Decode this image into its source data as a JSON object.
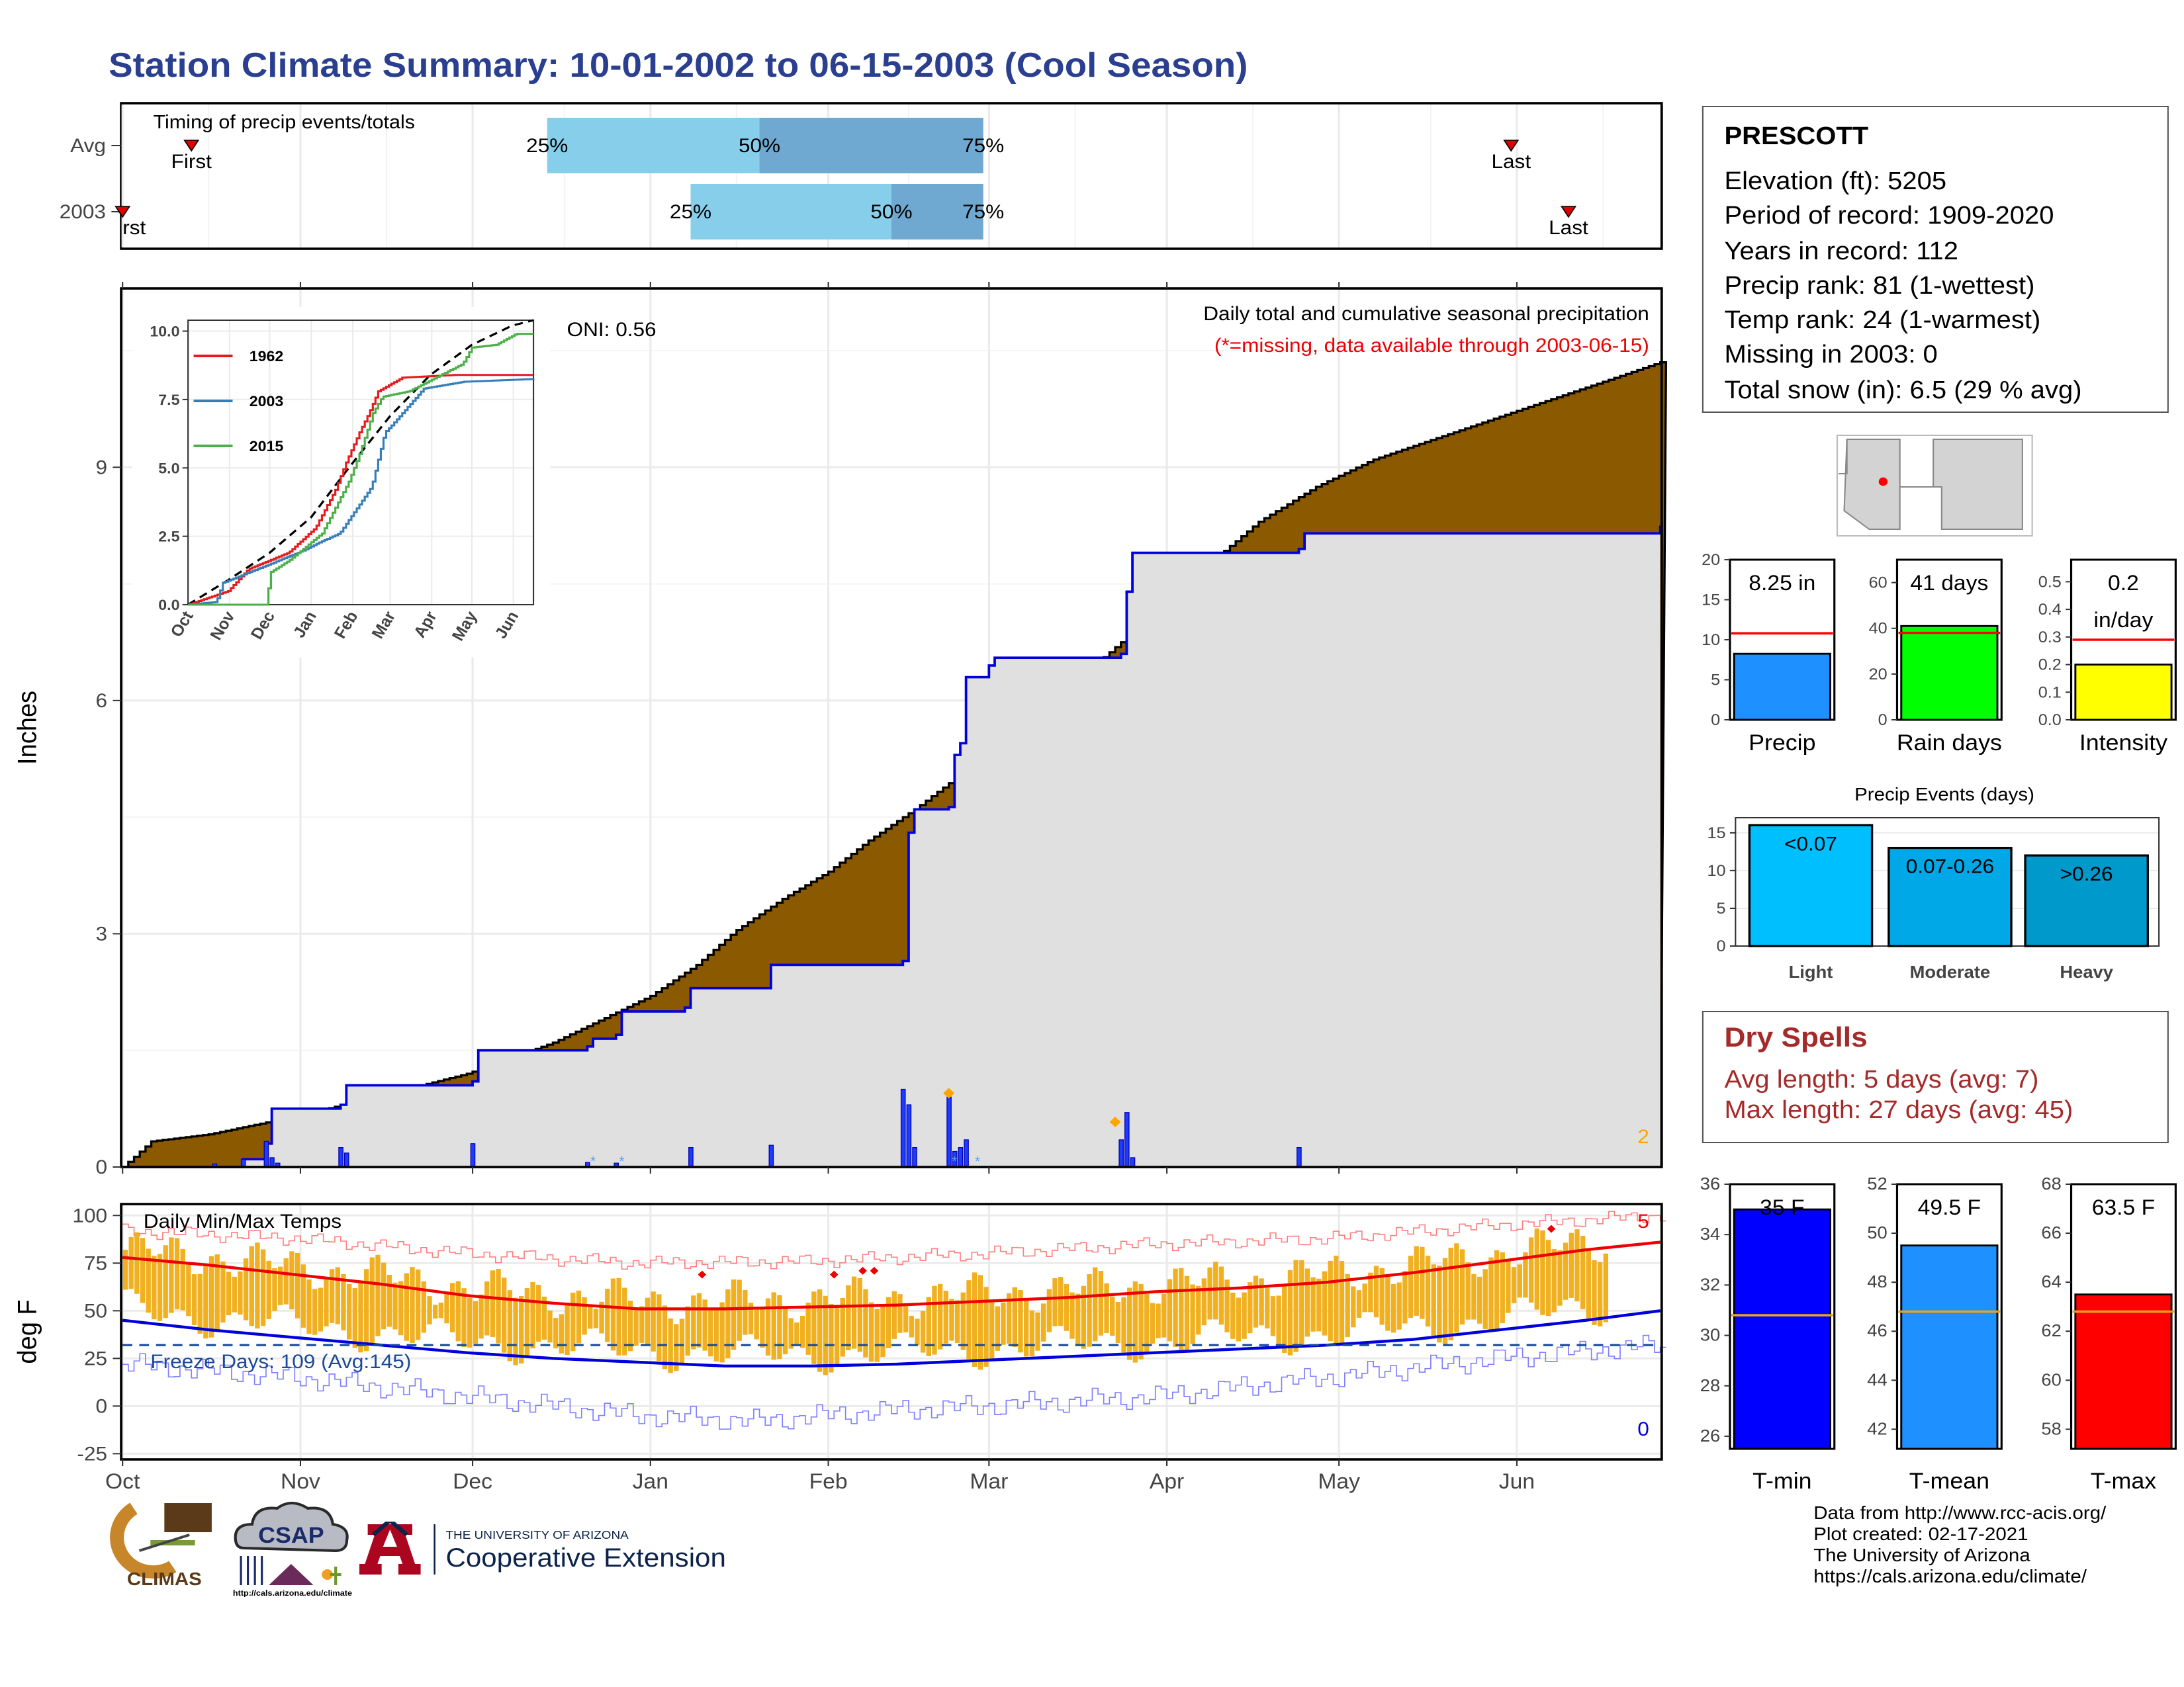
{
  "title": "Station Climate Summary: 10-01-2002 to 06-15-2003 (Cool Season)",
  "months": [
    "Oct",
    "Nov",
    "Dec",
    "Jan",
    "Feb",
    "Mar",
    "Apr",
    "May",
    "Jun"
  ],
  "timing": {
    "title": "Timing of precip events/totals",
    "rows": [
      {
        "label": "Avg",
        "first_day": 12,
        "last_day": 242,
        "p25_day": 74,
        "p50_day": 111,
        "p75_day": 150
      },
      {
        "label": "2003",
        "first_day": 0,
        "last_day": 252,
        "p25_day": 99,
        "p50_day": 134,
        "p75_day": 150
      }
    ],
    "first_label": "First",
    "first_label_clipped": "rst",
    "last_label": "Last",
    "p25": "25%",
    "p50": "50%",
    "p75": "75%"
  },
  "precip": {
    "ylabel": "Inches",
    "legend_title": "Daily total and cumulative seasonal precipitation",
    "legend_note": "(*=missing, data available through 2003-06-15)",
    "oni": "ONI: 0.56",
    "corner_count": "2",
    "yticks": [
      "0",
      "3",
      "6",
      "9"
    ],
    "avg_cumulative": [
      [
        0,
        0
      ],
      [
        5,
        0.33
      ],
      [
        15,
        0.42
      ],
      [
        30,
        0.65
      ],
      [
        45,
        0.92
      ],
      [
        60,
        1.2
      ],
      [
        75,
        1.6
      ],
      [
        92,
        2.2
      ],
      [
        100,
        2.6
      ],
      [
        107,
        3.05
      ],
      [
        115,
        3.45
      ],
      [
        123,
        3.8
      ],
      [
        130,
        4.2
      ],
      [
        138,
        4.6
      ],
      [
        146,
        5.05
      ],
      [
        153,
        5.5
      ],
      [
        160,
        5.9
      ],
      [
        167,
        6.3
      ],
      [
        174,
        6.75
      ],
      [
        182,
        7.3
      ],
      [
        190,
        7.8
      ],
      [
        198,
        8.3
      ],
      [
        208,
        8.75
      ],
      [
        218,
        9.1
      ],
      [
        228,
        9.35
      ],
      [
        238,
        9.6
      ],
      [
        248,
        9.85
      ],
      [
        258,
        10.1
      ],
      [
        268,
        10.35
      ]
    ],
    "cumulative_2003": [
      [
        0,
        0
      ],
      [
        21,
        0.1
      ],
      [
        25,
        0.3
      ],
      [
        26,
        0.75
      ],
      [
        38,
        0.8
      ],
      [
        39,
        1.05
      ],
      [
        61,
        1.1
      ],
      [
        62,
        1.5
      ],
      [
        81,
        1.55
      ],
      [
        82,
        1.65
      ],
      [
        86,
        1.7
      ],
      [
        87,
        2.0
      ],
      [
        98,
        2.05
      ],
      [
        99,
        2.3
      ],
      [
        113,
        2.6
      ],
      [
        136,
        2.65
      ],
      [
        137,
        4.3
      ],
      [
        138,
        4.6
      ],
      [
        144,
        4.63
      ],
      [
        145,
        5.3
      ],
      [
        146,
        5.45
      ],
      [
        147,
        6.3
      ],
      [
        151,
        6.45
      ],
      [
        152,
        6.55
      ],
      [
        174,
        6.6
      ],
      [
        175,
        7.4
      ],
      [
        176,
        7.9
      ],
      [
        205,
        7.95
      ],
      [
        206,
        8.15
      ],
      [
        268,
        8.25
      ]
    ],
    "daily": [
      [
        16,
        0.04
      ],
      [
        21,
        0.1
      ],
      [
        25,
        0.33
      ],
      [
        26,
        0.12
      ],
      [
        27,
        0.05
      ],
      [
        38,
        0.25
      ],
      [
        39,
        0.18
      ],
      [
        61,
        0.3
      ],
      [
        81,
        0.06
      ],
      [
        86,
        0.05
      ],
      [
        99,
        0.25
      ],
      [
        113,
        0.28
      ],
      [
        136,
        1.0
      ],
      [
        137,
        0.8
      ],
      [
        138,
        0.25
      ],
      [
        144,
        0.9
      ],
      [
        145,
        0.2
      ],
      [
        146,
        0.25
      ],
      [
        147,
        0.35
      ],
      [
        174,
        0.35
      ],
      [
        175,
        0.7
      ],
      [
        176,
        0.12
      ],
      [
        205,
        0.25
      ]
    ],
    "snow_days": [
      82,
      87,
      145,
      149
    ],
    "diamonds": [
      [
        144,
        0.95
      ],
      [
        173,
        0.58
      ]
    ]
  },
  "inset": {
    "xticks": [
      "Oct",
      "Nov",
      "Dec",
      "Jan",
      "Feb",
      "Mar",
      "Apr",
      "May",
      "Jun"
    ],
    "yticks": [
      "0.0",
      "2.5",
      "5.0",
      "7.5",
      "10.0"
    ],
    "series": [
      {
        "name": "1962",
        "color": "#e41a1c",
        "points": [
          [
            0,
            0
          ],
          [
            30,
            0.5
          ],
          [
            45,
            1.3
          ],
          [
            75,
            1.9
          ],
          [
            95,
            2.8
          ],
          [
            110,
            4.2
          ],
          [
            118,
            5.2
          ],
          [
            128,
            6.3
          ],
          [
            135,
            7.0
          ],
          [
            142,
            7.8
          ],
          [
            160,
            8.3
          ],
          [
            200,
            8.4
          ],
          [
            258,
            8.4
          ]
        ]
      },
      {
        "name": "2003",
        "color": "#377eb8",
        "points": [
          [
            0,
            0
          ],
          [
            21,
            0.1
          ],
          [
            26,
            0.8
          ],
          [
            39,
            1.05
          ],
          [
            62,
            1.5
          ],
          [
            87,
            2.0
          ],
          [
            99,
            2.3
          ],
          [
            113,
            2.6
          ],
          [
            137,
            4.3
          ],
          [
            147,
            6.3
          ],
          [
            152,
            6.55
          ],
          [
            176,
            7.9
          ],
          [
            206,
            8.15
          ],
          [
            258,
            8.25
          ]
        ]
      },
      {
        "name": "2015",
        "color": "#4daf4a",
        "points": [
          [
            0,
            0
          ],
          [
            58,
            0
          ],
          [
            62,
            1.2
          ],
          [
            75,
            1.6
          ],
          [
            100,
            2.6
          ],
          [
            120,
            4.5
          ],
          [
            128,
            5.5
          ],
          [
            138,
            7.0
          ],
          [
            145,
            7.6
          ],
          [
            165,
            7.8
          ],
          [
            205,
            8.8
          ],
          [
            212,
            9.4
          ],
          [
            230,
            9.5
          ],
          [
            245,
            9.9
          ],
          [
            258,
            9.9
          ]
        ]
      }
    ],
    "avg_points": [
      [
        0,
        0
      ],
      [
        30,
        0.9
      ],
      [
        61,
        1.9
      ],
      [
        92,
        3.2
      ],
      [
        120,
        5.0
      ],
      [
        151,
        6.9
      ],
      [
        181,
        8.4
      ],
      [
        212,
        9.5
      ],
      [
        242,
        10.2
      ],
      [
        258,
        10.4
      ]
    ]
  },
  "temps": {
    "ylabel": "deg F",
    "title": "Daily Min/Max Temps",
    "freeze_days": "Freeze Days: 109 (Avg:145)",
    "count_high": "5",
    "count_low": "0",
    "yticks": [
      "-25",
      "0",
      "25",
      "50",
      "75",
      "100"
    ],
    "avg_max": [
      [
        0,
        78
      ],
      [
        15,
        74
      ],
      [
        30,
        69
      ],
      [
        45,
        64
      ],
      [
        60,
        58
      ],
      [
        75,
        54
      ],
      [
        90,
        51
      ],
      [
        105,
        51
      ],
      [
        120,
        52
      ],
      [
        135,
        53
      ],
      [
        150,
        55
      ],
      [
        165,
        57
      ],
      [
        180,
        60
      ],
      [
        195,
        62
      ],
      [
        210,
        65
      ],
      [
        225,
        70
      ],
      [
        240,
        76
      ],
      [
        255,
        82
      ],
      [
        268,
        86
      ]
    ],
    "avg_min": [
      [
        0,
        45
      ],
      [
        15,
        40
      ],
      [
        30,
        36
      ],
      [
        45,
        32
      ],
      [
        60,
        28
      ],
      [
        75,
        25
      ],
      [
        90,
        23
      ],
      [
        105,
        21
      ],
      [
        120,
        21
      ],
      [
        135,
        22
      ],
      [
        150,
        24
      ],
      [
        165,
        26
      ],
      [
        180,
        28
      ],
      [
        195,
        30
      ],
      [
        210,
        32
      ],
      [
        225,
        35
      ],
      [
        240,
        40
      ],
      [
        255,
        45
      ],
      [
        268,
        50
      ]
    ],
    "record_high": [
      [
        0,
        92
      ],
      [
        30,
        88
      ],
      [
        60,
        80
      ],
      [
        90,
        75
      ],
      [
        120,
        76
      ],
      [
        150,
        80
      ],
      [
        180,
        85
      ],
      [
        210,
        88
      ],
      [
        240,
        95
      ],
      [
        268,
        100
      ]
    ],
    "record_low": [
      [
        0,
        22
      ],
      [
        30,
        15
      ],
      [
        60,
        5
      ],
      [
        90,
        -5
      ],
      [
        110,
        -8
      ],
      [
        130,
        -3
      ],
      [
        150,
        0
      ],
      [
        180,
        5
      ],
      [
        210,
        15
      ],
      [
        240,
        25
      ],
      [
        268,
        32
      ]
    ],
    "record_marks": [
      [
        101,
        69
      ],
      [
        124,
        69
      ],
      [
        129,
        71
      ],
      [
        131,
        71
      ],
      [
        249,
        93
      ]
    ],
    "freeze_line": 32
  },
  "station": {
    "name": "PRESCOTT",
    "lines": [
      "Elevation (ft): 5205",
      "Period of record: 1909-2020",
      "Years in record: 112",
      "Precip rank: 81 (1-wettest)",
      "Temp rank: 24 (1-warmest)",
      "Missing in 2003: 0",
      "Total snow (in): 6.5 (29 % avg)"
    ]
  },
  "gauges": [
    {
      "label": "Precip",
      "value_text": "8.25 in",
      "value": 8.25,
      "avg": 10.8,
      "max": 20,
      "yticks": [
        "0",
        "5",
        "10",
        "15",
        "20"
      ],
      "color": "#1e90ff"
    },
    {
      "label": "Rain days",
      "value_text": "41 days",
      "value": 41,
      "avg": 38,
      "max": 70,
      "yticks": [
        "0",
        "20",
        "40",
        "60"
      ],
      "color": "#00ff00"
    },
    {
      "label": "Intensity",
      "value_text": "0.2",
      "value_text2": "in/day",
      "value": 0.2,
      "avg": 0.29,
      "max": 0.58,
      "yticks": [
        "0.0",
        "0.1",
        "0.2",
        "0.3",
        "0.4",
        "0.5"
      ],
      "color": "#ffff00"
    }
  ],
  "events": {
    "title": "Precip Events (days)",
    "bars": [
      {
        "label": "Light",
        "text": "<0.07",
        "value": 16,
        "color": "#00bfff"
      },
      {
        "label": "Moderate",
        "text": "0.07-0.26",
        "value": 13,
        "color": "#00a8e8"
      },
      {
        "label": "Heavy",
        "text": ">0.26",
        "value": 12,
        "color": "#0099cc"
      }
    ],
    "yticks": [
      "0",
      "5",
      "10",
      "15"
    ]
  },
  "dry_spells": {
    "title": "Dry Spells",
    "avg": "Avg length: 5 days (avg: 7)",
    "max": "Max length: 27 days (avg: 45)"
  },
  "temp_gauges": [
    {
      "label": "T-min",
      "value_text": "35 F",
      "value": 35,
      "avg": 30.8,
      "min": 25.5,
      "max": 36,
      "yticks": [
        "26",
        "28",
        "30",
        "32",
        "34",
        "36"
      ],
      "color": "#0000ff"
    },
    {
      "label": "T-mean",
      "value_text": "49.5 F",
      "value": 49.5,
      "avg": 46.8,
      "min": 41.2,
      "max": 52,
      "yticks": [
        "42",
        "44",
        "46",
        "48",
        "50",
        "52"
      ],
      "color": "#1e90ff"
    },
    {
      "label": "T-max",
      "value_text": "63.5 F",
      "value": 63.5,
      "avg": 62.8,
      "min": 57.2,
      "max": 68,
      "yticks": [
        "58",
        "60",
        "62",
        "64",
        "66",
        "68"
      ],
      "color": "#ff0000"
    }
  ],
  "credits": [
    "Data from http://www.rcc-acis.org/",
    "Plot created: 02-17-2021",
    "The University of Arizona",
    "https://cals.arizona.edu/climate/"
  ],
  "logos": {
    "climas": "CLIMAS",
    "csap": "CSAP",
    "csap_url": "http://cals.arizona.edu/climate",
    "ua_small": "THE UNIVERSITY OF ARIZONA",
    "ua_large": "Cooperative Extension"
  }
}
